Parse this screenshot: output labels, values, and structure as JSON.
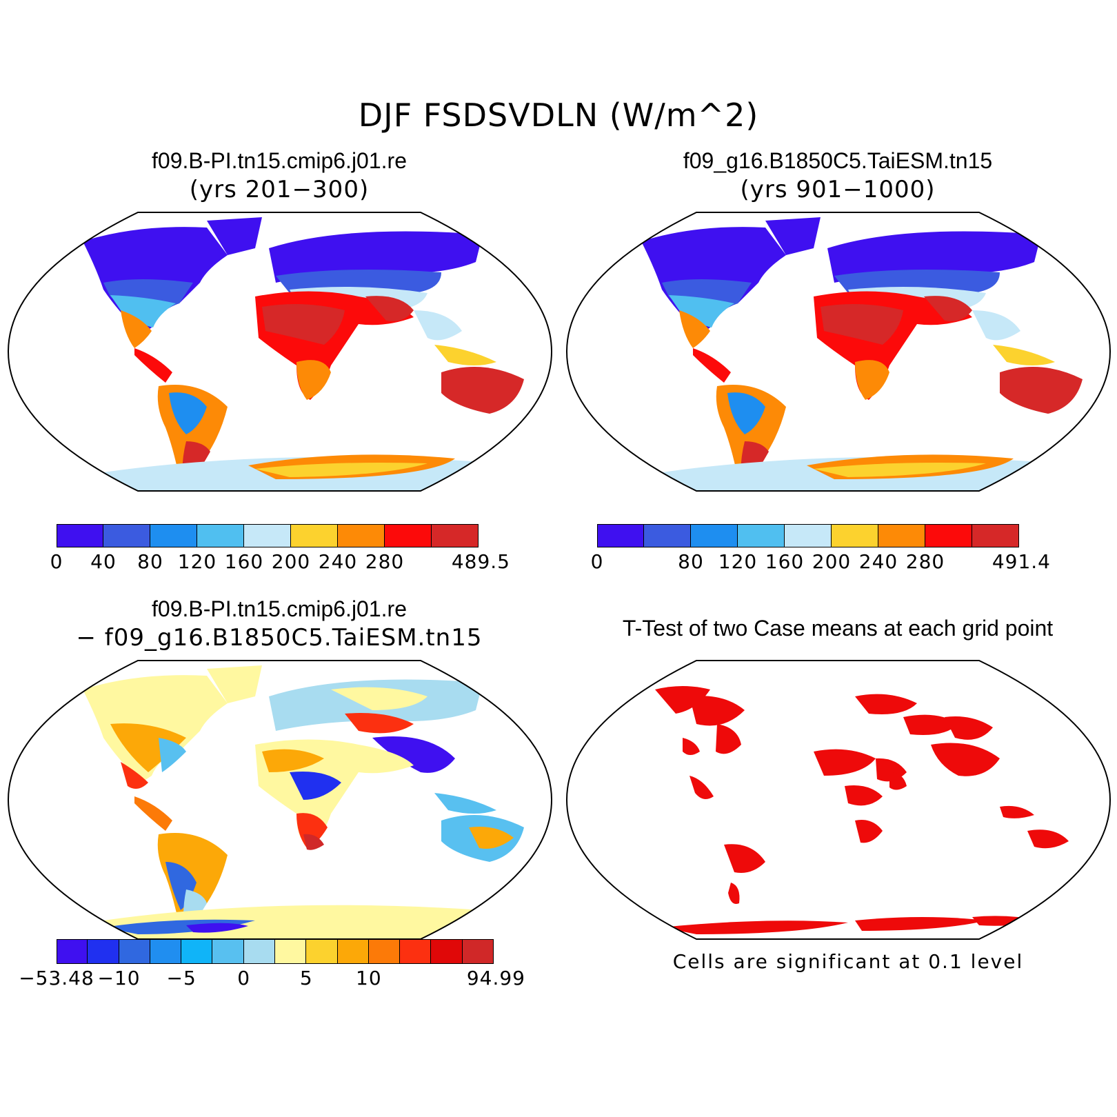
{
  "title": "DJF FSDSVDLN (W/m^2)",
  "panels": {
    "top_left": {
      "case": "f09.B-PI.tn15.cmip6.j01.re",
      "years": "(yrs 201−300)",
      "colorbar": {
        "colors": [
          "#3f10f0",
          "#3b5be0",
          "#1e8ef0",
          "#50bff0",
          "#c6e8f8",
          "#fcd22e",
          "#fd8a06",
          "#fc0a0a",
          "#d62828"
        ],
        "labels": [
          "0",
          "40",
          "80",
          "120",
          "160",
          "200",
          "240",
          "280",
          "",
          "489.5"
        ]
      }
    },
    "top_right": {
      "case": "f09_g16.B1850C5.TaiESM.tn15",
      "years": "(yrs 901−1000)",
      "colorbar": {
        "colors": [
          "#3f10f0",
          "#3b5be0",
          "#1e8ef0",
          "#50bff0",
          "#c6e8f8",
          "#fcd22e",
          "#fd8a06",
          "#fc0a0a",
          "#d62828"
        ],
        "labels": [
          "0",
          "",
          "80",
          "120",
          "160",
          "200",
          "240",
          "280",
          "",
          "491.4"
        ]
      }
    },
    "bottom_left": {
      "case": "f09.B-PI.tn15.cmip6.j01.re",
      "minus_case": "− f09_g16.B1850C5.TaiESM.tn15",
      "colorbar": {
        "colors": [
          "#3f10f0",
          "#2030f0",
          "#3068e0",
          "#208ef0",
          "#10b4f8",
          "#58c0f0",
          "#a8dcf0",
          "#fff8a0",
          "#fcd22e",
          "#fca808",
          "#fc7a08",
          "#fc3010",
          "#e00808",
          "#d02828"
        ],
        "labels": [
          "−53.48",
          "",
          "−10",
          "",
          "−5",
          "",
          "0",
          "",
          "5",
          "",
          "10",
          "",
          "",
          "",
          "94.99"
        ]
      }
    },
    "bottom_right": {
      "title": "T-Test of two Case means at each grid point",
      "note": "Cells are significant at 0.1 level",
      "sig_color": "#ee0a0a"
    }
  }
}
